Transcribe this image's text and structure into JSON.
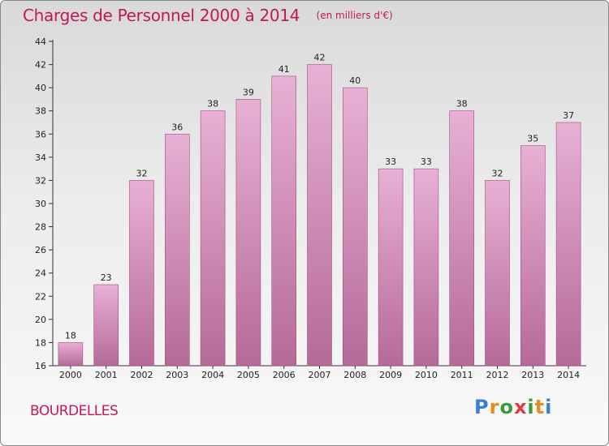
{
  "title": "Charges de Personnel 2000 à 2014",
  "subtitle": "(en milliers d'€)",
  "commune": "BOURDELLES",
  "logo": {
    "letters": [
      "P",
      "r",
      "o",
      "x",
      "i",
      "t",
      "i"
    ],
    "colors": [
      "#3a7fd5",
      "#e88b1f",
      "#3a9c3a",
      "#e03a3a",
      "#3a9c3a",
      "#e88b1f",
      "#3a7fd5"
    ]
  },
  "colors": {
    "bar_top": "#e8b0d4",
    "bar_bottom": "#b56a98",
    "title": "#c2185b"
  },
  "chart_data": {
    "type": "bar",
    "title": "Charges de Personnel 2000 à 2014",
    "subtitle": "(en milliers d'€)",
    "categories": [
      "2000",
      "2001",
      "2002",
      "2003",
      "2004",
      "2005",
      "2006",
      "2007",
      "2008",
      "2009",
      "2010",
      "2011",
      "2012",
      "2013",
      "2014"
    ],
    "values": [
      18,
      23,
      32,
      36,
      38,
      39,
      41,
      42,
      40,
      33,
      33,
      38,
      32,
      35,
      37
    ],
    "ylim": [
      16,
      44
    ],
    "yticks": [
      16,
      18,
      20,
      22,
      24,
      26,
      28,
      30,
      32,
      34,
      36,
      38,
      40,
      42,
      44
    ],
    "grid": false,
    "data_labels": true
  }
}
